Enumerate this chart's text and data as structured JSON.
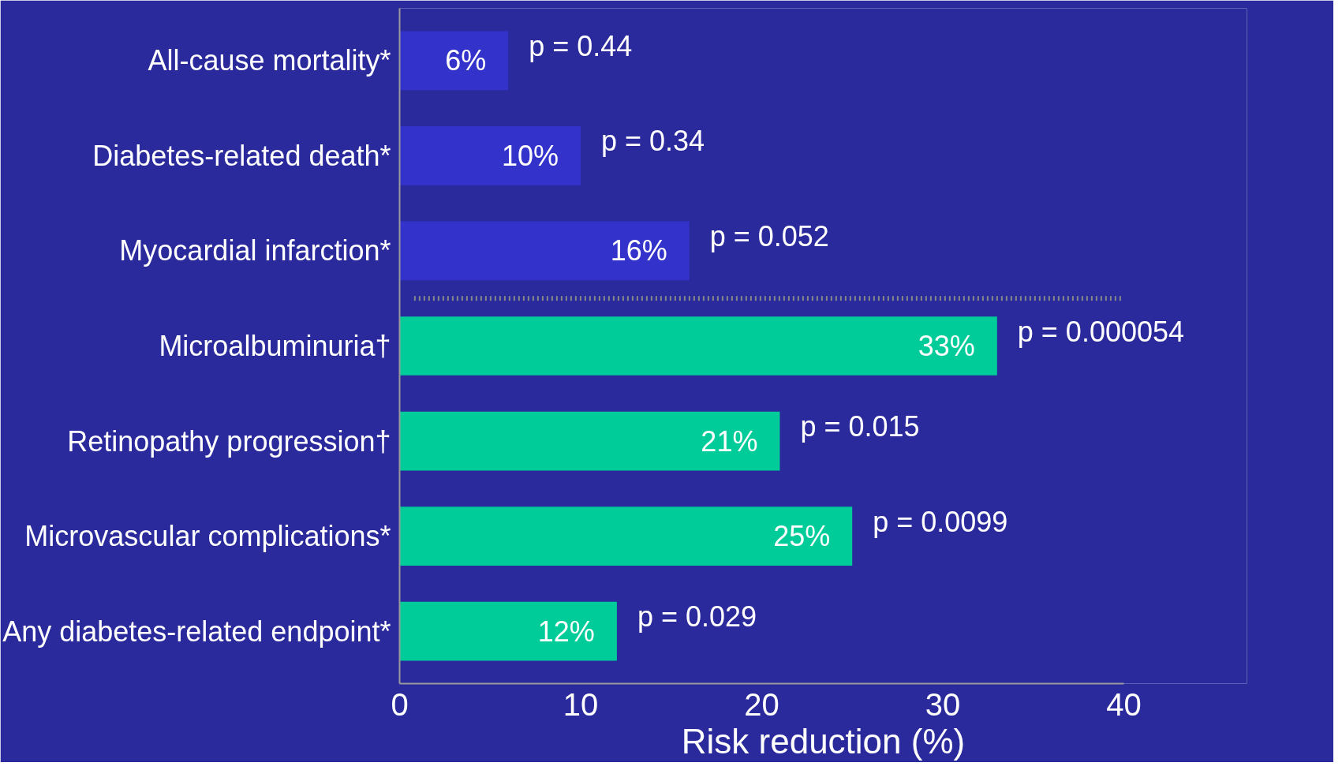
{
  "chart_data": {
    "type": "bar",
    "orientation": "horizontal",
    "categories": [
      "All-cause mortality*",
      "Diabetes-related death*",
      "Myocardial infarction*",
      "Microalbuminuria†",
      "Retinopathy progression†",
      "Microvascular complications*",
      "Any diabetes-related endpoint*"
    ],
    "values": [
      6,
      10,
      16,
      33,
      21,
      25,
      12
    ],
    "colors": [
      "#3333cc",
      "#3333cc",
      "#3333cc",
      "#00cc99",
      "#00cc99",
      "#00cc99",
      "#00cc99"
    ],
    "data_labels": true,
    "value_labels": [
      "6%",
      "10%",
      "16%",
      "33%",
      "21%",
      "25%",
      "12%"
    ],
    "xlabel": "Risk reduction (%)",
    "xlim": [
      0,
      40
    ],
    "xticks": [
      0,
      10,
      20,
      30,
      40
    ],
    "grid": false,
    "annotations": [
      {
        "text": "p = 0.44",
        "x": 6,
        "y": "All-cause mortality*"
      },
      {
        "text": "p = 0.34",
        "x": 10,
        "y": "Diabetes-related death*"
      },
      {
        "text": "p = 0.052",
        "x": 16,
        "y": "Myocardial infarction*"
      },
      {
        "text": "p = 0.000054",
        "x": 33,
        "y": "Microalbuminuria†"
      },
      {
        "text": "p = 0.015",
        "x": 21,
        "y": "Retinopathy progression†"
      },
      {
        "text": "p = 0.0099",
        "x": 25,
        "y": "Microvascular complications*"
      },
      {
        "text": "p = 0.029",
        "x": 12,
        "y": "Any diabetes-related endpoint*"
      }
    ]
  }
}
